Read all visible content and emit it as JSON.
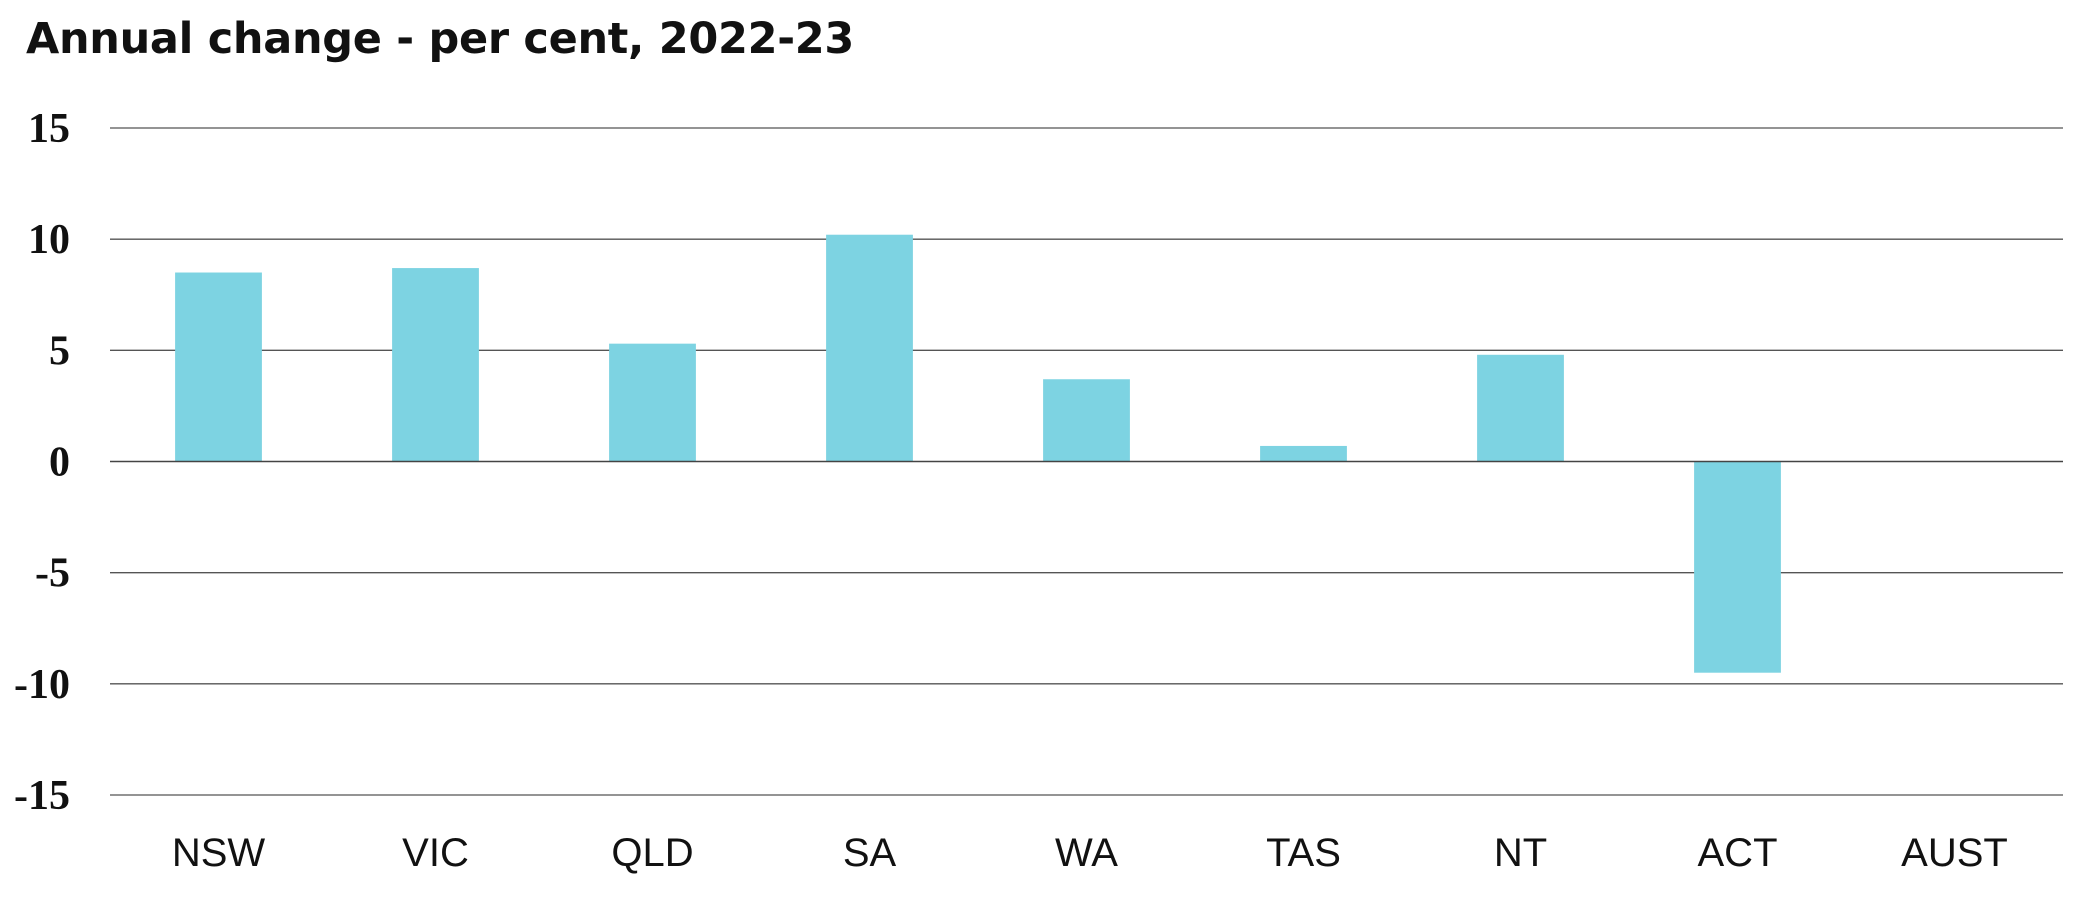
{
  "chart_data": {
    "type": "bar",
    "title": "Annual change - per cent, 2022-23",
    "categories": [
      "NSW",
      "VIC",
      "QLD",
      "SA",
      "WA",
      "TAS",
      "NT",
      "ACT",
      "AUST"
    ],
    "series": [
      {
        "values": [
          8.5,
          8.7,
          5.3,
          10.2,
          3.7,
          0.7,
          4.8,
          -9.5,
          null
        ],
        "color": "#7dd3e2"
      }
    ],
    "xlabel": "",
    "ylabel": "",
    "ylim": [
      -15,
      15
    ],
    "yticks": [
      "15",
      "10",
      "5",
      "0",
      "-5",
      "-10",
      "-15"
    ],
    "grid": true,
    "legend": "none"
  }
}
